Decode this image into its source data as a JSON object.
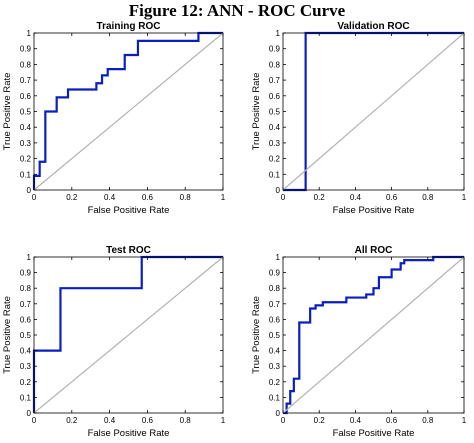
{
  "figure_title": "Figure 12: ANN - ROC Curve",
  "colors": {
    "roc": "#0a1fbf",
    "diagonal": "#b3b3b3",
    "axis": "#000000"
  },
  "chart_data": [
    {
      "type": "line",
      "title": "Training ROC",
      "xlabel": "False Positive Rate",
      "ylabel": "True Positive Rate",
      "xlim": [
        0,
        1
      ],
      "ylim": [
        0,
        1
      ],
      "xticks": [
        "0",
        "0.2",
        "0.4",
        "0.6",
        "0.8",
        "1"
      ],
      "yticks": [
        "0",
        "0.1",
        "0.2",
        "0.3",
        "0.4",
        "0.5",
        "0.6",
        "0.7",
        "0.8",
        "0.9",
        "1"
      ],
      "grid": false,
      "series": [
        {
          "kind": "roc",
          "x": [
            0,
            0,
            0.03,
            0.03,
            0.06,
            0.06,
            0.12,
            0.12,
            0.18,
            0.18,
            0.33,
            0.33,
            0.36,
            0.36,
            0.39,
            0.39,
            0.48,
            0.48,
            0.55,
            0.55,
            0.87,
            0.87,
            1
          ],
          "y": [
            0,
            0.09,
            0.09,
            0.18,
            0.18,
            0.5,
            0.5,
            0.59,
            0.59,
            0.64,
            0.64,
            0.68,
            0.68,
            0.73,
            0.73,
            0.77,
            0.77,
            0.86,
            0.86,
            0.95,
            0.95,
            1,
            1
          ]
        },
        {
          "kind": "diagonal",
          "x": [
            0,
            1
          ],
          "y": [
            0,
            1
          ]
        }
      ]
    },
    {
      "type": "line",
      "title": "Validation ROC",
      "xlabel": "False Positive Rate",
      "ylabel": "True Positive Rate",
      "xlim": [
        0,
        1
      ],
      "ylim": [
        0,
        1
      ],
      "xticks": [
        "0",
        "0.2",
        "0.4",
        "0.6",
        "0.8",
        "1"
      ],
      "yticks": [
        "0",
        "0.1",
        "0.2",
        "0.3",
        "0.4",
        "0.5",
        "0.6",
        "0.7",
        "0.8",
        "0.9",
        "1"
      ],
      "grid": false,
      "series": [
        {
          "kind": "roc",
          "x": [
            0,
            0.125,
            0.125,
            1
          ],
          "y": [
            0,
            0,
            1,
            1
          ]
        },
        {
          "kind": "diagonal",
          "x": [
            0,
            1
          ],
          "y": [
            0,
            1
          ]
        }
      ]
    },
    {
      "type": "line",
      "title": "Test ROC",
      "xlabel": "False Positive Rate",
      "ylabel": "True Positive Rate",
      "xlim": [
        0,
        1
      ],
      "ylim": [
        0,
        1
      ],
      "xticks": [
        "0",
        "0.2",
        "0.4",
        "0.6",
        "0.8",
        "1"
      ],
      "yticks": [
        "0",
        "0.1",
        "0.2",
        "0.3",
        "0.4",
        "0.5",
        "0.6",
        "0.7",
        "0.8",
        "0.9",
        "1"
      ],
      "grid": false,
      "series": [
        {
          "kind": "roc",
          "x": [
            0,
            0,
            0.14,
            0.14,
            0.57,
            0.57,
            1
          ],
          "y": [
            0,
            0.4,
            0.4,
            0.8,
            0.8,
            1,
            1
          ]
        },
        {
          "kind": "diagonal",
          "x": [
            0,
            1
          ],
          "y": [
            0,
            1
          ]
        }
      ]
    },
    {
      "type": "line",
      "title": "All ROC",
      "xlabel": "False Positive Rate",
      "ylabel": "True Positive Rate",
      "xlim": [
        0,
        1
      ],
      "ylim": [
        0,
        1
      ],
      "xticks": [
        "0",
        "0.2",
        "0.4",
        "0.6",
        "0.8",
        "1"
      ],
      "yticks": [
        "0",
        "0.1",
        "0.2",
        "0.3",
        "0.4",
        "0.5",
        "0.6",
        "0.7",
        "0.8",
        "0.9",
        "1"
      ],
      "grid": false,
      "series": [
        {
          "kind": "roc",
          "x": [
            0,
            0.02,
            0.02,
            0.04,
            0.04,
            0.06,
            0.06,
            0.09,
            0.09,
            0.15,
            0.15,
            0.18,
            0.18,
            0.22,
            0.22,
            0.35,
            0.35,
            0.46,
            0.46,
            0.5,
            0.5,
            0.53,
            0.53,
            0.6,
            0.6,
            0.65,
            0.65,
            0.67,
            0.67,
            0.83,
            0.83,
            0.9,
            0.9,
            1
          ],
          "y": [
            0,
            0,
            0.06,
            0.06,
            0.14,
            0.14,
            0.22,
            0.22,
            0.58,
            0.58,
            0.67,
            0.67,
            0.69,
            0.69,
            0.71,
            0.71,
            0.74,
            0.74,
            0.76,
            0.76,
            0.8,
            0.8,
            0.87,
            0.87,
            0.92,
            0.92,
            0.96,
            0.96,
            0.98,
            0.98,
            1,
            1,
            1,
            1
          ]
        },
        {
          "kind": "diagonal",
          "x": [
            0,
            1
          ],
          "y": [
            0,
            1
          ]
        }
      ]
    }
  ]
}
